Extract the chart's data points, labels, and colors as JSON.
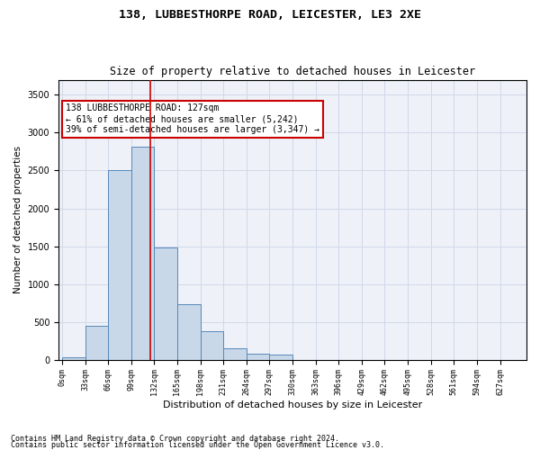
{
  "title": "138, LUBBESTHORPE ROAD, LEICESTER, LE3 2XE",
  "subtitle": "Size of property relative to detached houses in Leicester",
  "xlabel": "Distribution of detached houses by size in Leicester",
  "ylabel": "Number of detached properties",
  "bar_color": "#c8d8e8",
  "bar_edge_color": "#5588bb",
  "grid_color": "#d0d8e8",
  "background_color": "#eef2f8",
  "property_size": 127,
  "annotation_text": "138 LUBBESTHORPE ROAD: 127sqm\n← 61% of detached houses are smaller (5,242)\n39% of semi-detached houses are larger (3,347) →",
  "vline_color": "#cc0000",
  "bin_width": 33,
  "bin_starts": [
    0,
    33,
    66,
    99,
    132,
    165,
    198,
    231,
    264,
    297,
    330,
    363,
    396,
    429,
    462,
    495,
    528,
    561,
    594,
    627
  ],
  "bar_heights": [
    30,
    450,
    2500,
    2820,
    1480,
    730,
    380,
    150,
    80,
    70,
    0,
    0,
    0,
    0,
    0,
    0,
    0,
    0,
    0,
    0
  ],
  "ylim": [
    0,
    3700
  ],
  "yticks": [
    0,
    500,
    1000,
    1500,
    2000,
    2500,
    3000,
    3500
  ],
  "footnote1": "Contains HM Land Registry data © Crown copyright and database right 2024.",
  "footnote2": "Contains public sector information licensed under the Open Government Licence v3.0.",
  "annotation_box_color": "#ffffff",
  "annotation_box_edge_color": "#cc0000"
}
